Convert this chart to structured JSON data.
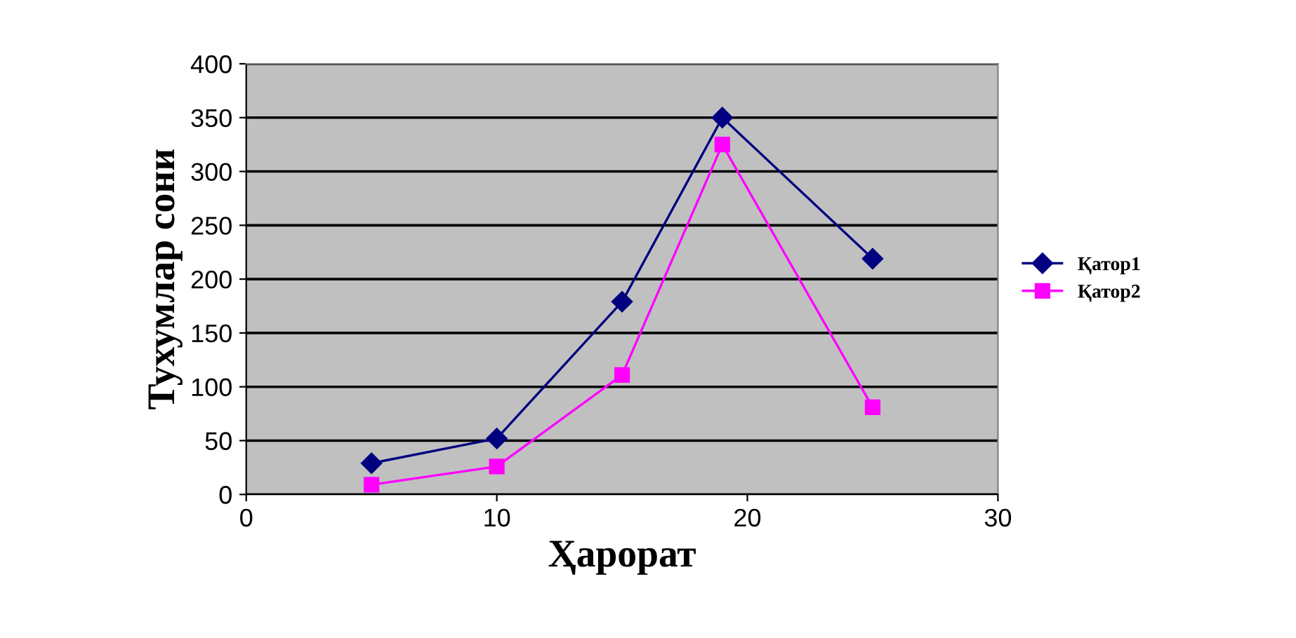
{
  "chart_data": {
    "type": "line",
    "xlabel": "Ҳарорат",
    "ylabel": "Тухумлар сони",
    "x": [
      5,
      10,
      15,
      19,
      25
    ],
    "series": [
      {
        "name": "Қатор1",
        "color": "#000080",
        "marker": "diamond",
        "values": [
          29,
          52,
          179,
          350,
          219
        ]
      },
      {
        "name": "Қатор2",
        "color": "#ff00ff",
        "marker": "square",
        "values": [
          9,
          26,
          111,
          325,
          81
        ]
      }
    ],
    "xlim": [
      0,
      30
    ],
    "xticks": [
      0,
      10,
      20,
      30
    ],
    "ylim": [
      0,
      400
    ],
    "yticks": [
      0,
      50,
      100,
      150,
      200,
      250,
      300,
      350,
      400
    ],
    "grid": "y",
    "legend": "right",
    "line_style": "solid"
  }
}
